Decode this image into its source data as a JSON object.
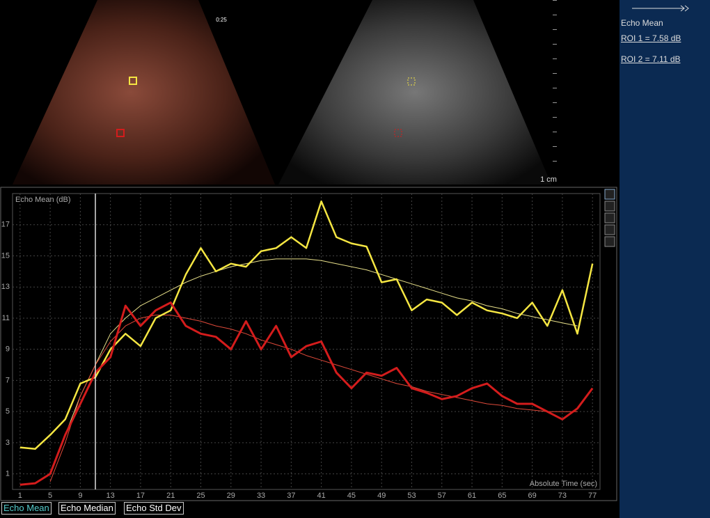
{
  "overlay": {
    "timestamp": "0:25",
    "scale": "1 cm"
  },
  "panel": {
    "title": "Echo Mean",
    "rois": [
      "ROI 1 = 7.58 dB",
      "ROI 2 = 7.11 dB"
    ]
  },
  "tabs": [
    "Echo Mean",
    "Echo Median",
    "Echo Std Dev"
  ],
  "chart_data": {
    "type": "line",
    "ylabel": "Echo Mean (dB)",
    "xlabel": "Absolute Time (sec)",
    "x": [
      1,
      3,
      5,
      7,
      9,
      11,
      13,
      15,
      17,
      19,
      21,
      23,
      25,
      27,
      29,
      31,
      33,
      35,
      37,
      39,
      41,
      43,
      45,
      47,
      49,
      51,
      53,
      55,
      57,
      59,
      61,
      63,
      65,
      67,
      69,
      71,
      73,
      75,
      77
    ],
    "series": [
      {
        "color": "#f5e642",
        "width": 2.5,
        "values": [
          2.7,
          2.6,
          3.5,
          4.5,
          6.8,
          7.2,
          9,
          10,
          9.2,
          11,
          11.5,
          13.8,
          15.5,
          14,
          14.5,
          14.3,
          15.3,
          15.5,
          16.2,
          15.5,
          18.5,
          16.2,
          15.8,
          15.6,
          13.3,
          13.5,
          11.5,
          12.2,
          12,
          11.2,
          12,
          11.5,
          11.3,
          11,
          12,
          10.5,
          12.8,
          10,
          14.5
        ]
      },
      {
        "color": "#d41c1c",
        "width": 3,
        "values": [
          0.3,
          0.4,
          1,
          3.5,
          5.5,
          7.5,
          8.5,
          11.8,
          10.5,
          11.5,
          12,
          10.5,
          10,
          9.8,
          9,
          10.8,
          9,
          10.5,
          8.5,
          9.2,
          9.5,
          7.5,
          6.5,
          7.5,
          7.3,
          7.8,
          6.5,
          6.2,
          5.8,
          6,
          6.5,
          6.8,
          6,
          5.5,
          5.5,
          5,
          4.5,
          5.2,
          6.5
        ]
      },
      {
        "color": "#e8e08a",
        "width": 1,
        "values": [
          null,
          null,
          1,
          3.5,
          6,
          8,
          10,
          11,
          11.8,
          12.3,
          12.8,
          13.3,
          13.7,
          14,
          14.3,
          14.5,
          14.7,
          14.8,
          14.8,
          14.8,
          14.7,
          14.5,
          14.3,
          14.1,
          13.8,
          13.5,
          13.2,
          12.9,
          12.6,
          12.3,
          12.1,
          11.8,
          11.6,
          11.3,
          11.1,
          10.9,
          10.7,
          10.5,
          null
        ]
      },
      {
        "color": "#e04a3a",
        "width": 1,
        "values": [
          null,
          null,
          0.5,
          3,
          6,
          8,
          9.5,
          10.5,
          11,
          11.2,
          11.2,
          11,
          10.8,
          10.5,
          10.3,
          10,
          9.6,
          9.3,
          9,
          8.6,
          8.3,
          8,
          7.7,
          7.4,
          7.1,
          6.8,
          6.6,
          6.3,
          6.1,
          5.9,
          5.7,
          5.5,
          5.4,
          5.2,
          5.1,
          5,
          5,
          5,
          null
        ]
      }
    ],
    "xlim": [
      0,
      78
    ],
    "ylim": [
      0,
      19
    ],
    "xticks": [
      1,
      5,
      9,
      13,
      17,
      21,
      25,
      29,
      33,
      37,
      41,
      45,
      49,
      53,
      57,
      61,
      65,
      69,
      73,
      77
    ],
    "yticks": [
      1,
      3,
      5,
      7,
      9,
      11,
      13,
      15,
      17
    ],
    "grid": true,
    "cursor_x": 11
  }
}
